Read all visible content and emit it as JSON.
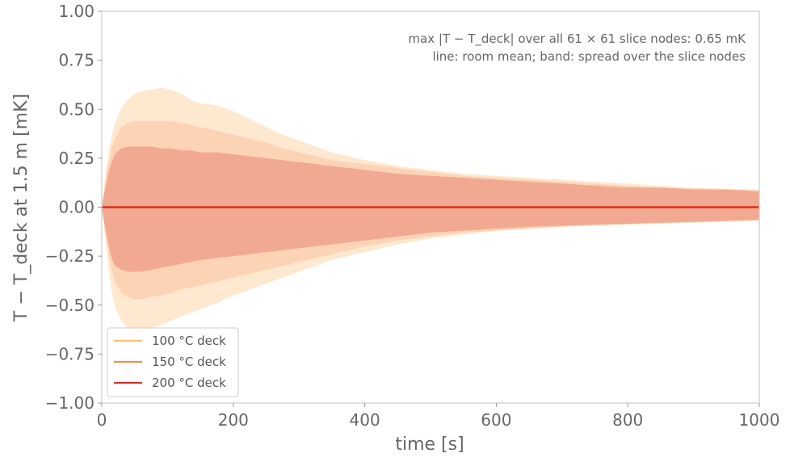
{
  "chart_data": {
    "type": "area",
    "title": "",
    "xlabel": "time [s]",
    "ylabel": "T − T_deck at 1.5 m [mK]",
    "xlim": [
      0,
      1000
    ],
    "ylim": [
      -1.0,
      1.0
    ],
    "x_ticks": [
      "0",
      "200",
      "400",
      "600",
      "800",
      "1000"
    ],
    "y_ticks": [
      "−1.00",
      "−0.75",
      "−0.50",
      "−0.25",
      "0.00",
      "0.25",
      "0.50",
      "0.75",
      "1.00"
    ],
    "grid": false,
    "legend_position": "lower-left",
    "annotations": [
      "max |T − T_deck| over all 61 × 61 slice nodes: 0.65 mK",
      "line: room mean; band: spread over the slice nodes"
    ],
    "series": [
      {
        "name": "100 °C deck",
        "color": "#fdbf6f",
        "band_color": "#fee8cf",
        "mean_value": 0.0,
        "band": {
          "x": [
            0,
            5,
            10,
            15,
            20,
            30,
            40,
            50,
            60,
            75,
            90,
            105,
            120,
            135,
            150,
            175,
            200,
            225,
            250,
            275,
            300,
            325,
            350,
            375,
            400,
            450,
            500,
            550,
            600,
            650,
            700,
            750,
            800,
            850,
            900,
            950,
            1000
          ],
          "upper": [
            0.0,
            0.15,
            0.27,
            0.36,
            0.43,
            0.51,
            0.55,
            0.58,
            0.59,
            0.6,
            0.61,
            0.6,
            0.58,
            0.55,
            0.53,
            0.52,
            0.49,
            0.45,
            0.41,
            0.37,
            0.34,
            0.31,
            0.28,
            0.26,
            0.24,
            0.21,
            0.19,
            0.17,
            0.16,
            0.15,
            0.14,
            0.13,
            0.12,
            0.11,
            0.1,
            0.095,
            0.09
          ],
          "lower": [
            0.0,
            -0.15,
            -0.3,
            -0.43,
            -0.51,
            -0.58,
            -0.62,
            -0.64,
            -0.64,
            -0.62,
            -0.6,
            -0.58,
            -0.56,
            -0.54,
            -0.52,
            -0.49,
            -0.45,
            -0.42,
            -0.39,
            -0.36,
            -0.33,
            -0.3,
            -0.27,
            -0.25,
            -0.23,
            -0.19,
            -0.16,
            -0.14,
            -0.12,
            -0.11,
            -0.1,
            -0.095,
            -0.09,
            -0.085,
            -0.08,
            -0.075,
            -0.07
          ]
        }
      },
      {
        "name": "150 °C deck",
        "color": "#f4894b",
        "band_color": "#fdd3b6",
        "mean_value": 0.0,
        "band": {
          "x": [
            0,
            5,
            10,
            15,
            20,
            30,
            40,
            50,
            60,
            75,
            90,
            105,
            120,
            135,
            150,
            175,
            200,
            225,
            250,
            275,
            300,
            325,
            350,
            375,
            400,
            450,
            500,
            550,
            600,
            650,
            700,
            750,
            800,
            850,
            900,
            950,
            1000
          ],
          "upper": [
            0.0,
            0.12,
            0.22,
            0.3,
            0.35,
            0.41,
            0.43,
            0.44,
            0.44,
            0.44,
            0.44,
            0.44,
            0.43,
            0.42,
            0.41,
            0.39,
            0.37,
            0.35,
            0.33,
            0.3,
            0.28,
            0.26,
            0.24,
            0.23,
            0.22,
            0.2,
            0.18,
            0.16,
            0.15,
            0.14,
            0.13,
            0.12,
            0.11,
            0.1,
            0.095,
            0.09,
            0.085
          ],
          "lower": [
            0.0,
            -0.12,
            -0.23,
            -0.32,
            -0.38,
            -0.44,
            -0.46,
            -0.47,
            -0.47,
            -0.46,
            -0.45,
            -0.44,
            -0.42,
            -0.41,
            -0.4,
            -0.38,
            -0.36,
            -0.34,
            -0.32,
            -0.3,
            -0.28,
            -0.26,
            -0.24,
            -0.22,
            -0.2,
            -0.17,
            -0.15,
            -0.13,
            -0.12,
            -0.11,
            -0.1,
            -0.09,
            -0.085,
            -0.08,
            -0.075,
            -0.07,
            -0.065
          ]
        }
      },
      {
        "name": "200 °C deck",
        "color": "#d73027",
        "band_color": "#f2a992",
        "mean_value": 0.0,
        "band": {
          "x": [
            0,
            5,
            10,
            15,
            20,
            30,
            40,
            50,
            60,
            75,
            90,
            105,
            120,
            135,
            150,
            175,
            200,
            225,
            250,
            275,
            300,
            325,
            350,
            375,
            400,
            450,
            500,
            550,
            600,
            650,
            700,
            750,
            800,
            850,
            900,
            950,
            1000
          ],
          "upper": [
            0.0,
            0.09,
            0.17,
            0.23,
            0.27,
            0.3,
            0.31,
            0.31,
            0.31,
            0.31,
            0.3,
            0.3,
            0.29,
            0.29,
            0.28,
            0.28,
            0.27,
            0.26,
            0.25,
            0.24,
            0.23,
            0.22,
            0.21,
            0.2,
            0.19,
            0.17,
            0.16,
            0.15,
            0.14,
            0.13,
            0.12,
            0.11,
            0.1,
            0.1,
            0.09,
            0.09,
            0.08
          ],
          "lower": [
            0.0,
            -0.1,
            -0.19,
            -0.26,
            -0.3,
            -0.32,
            -0.33,
            -0.33,
            -0.33,
            -0.32,
            -0.31,
            -0.3,
            -0.29,
            -0.28,
            -0.27,
            -0.26,
            -0.25,
            -0.24,
            -0.23,
            -0.22,
            -0.21,
            -0.2,
            -0.19,
            -0.18,
            -0.17,
            -0.15,
            -0.13,
            -0.12,
            -0.11,
            -0.1,
            -0.095,
            -0.09,
            -0.085,
            -0.08,
            -0.075,
            -0.07,
            -0.065
          ]
        }
      }
    ]
  }
}
